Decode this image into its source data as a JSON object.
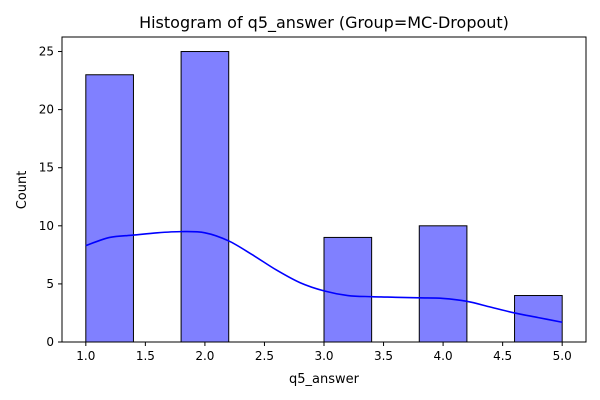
{
  "chart_data": {
    "type": "bar",
    "title": "Histogram of q5_answer (Group=MC-Dropout)",
    "xlabel": "q5_answer",
    "ylabel": "Count",
    "xlim": [
      0.8,
      5.2
    ],
    "ylim": [
      0,
      26.25
    ],
    "x_ticks": [
      "1.0",
      "1.5",
      "2.0",
      "2.5",
      "3.0",
      "3.5",
      "4.0",
      "4.5",
      "5.0"
    ],
    "y_ticks": [
      "0",
      "5",
      "10",
      "15",
      "20",
      "25"
    ],
    "bins": [
      {
        "start": 1.0,
        "end": 1.4,
        "count": 23
      },
      {
        "start": 1.8,
        "end": 2.2,
        "count": 25
      },
      {
        "start": 3.0,
        "end": 3.4,
        "count": 9
      },
      {
        "start": 3.8,
        "end": 4.2,
        "count": 10
      },
      {
        "start": 4.6,
        "end": 5.0,
        "count": 4
      }
    ],
    "kde": {
      "x": [
        1.0,
        1.2,
        1.4,
        1.6,
        1.8,
        2.0,
        2.2,
        2.4,
        2.6,
        2.8,
        3.0,
        3.2,
        3.4,
        3.6,
        3.8,
        4.0,
        4.2,
        4.4,
        4.6,
        4.8,
        5.0
      ],
      "y": [
        8.3,
        9.0,
        9.2,
        9.4,
        9.5,
        9.4,
        8.7,
        7.5,
        6.2,
        5.1,
        4.4,
        4.0,
        3.9,
        3.85,
        3.8,
        3.75,
        3.5,
        3.0,
        2.5,
        2.1,
        1.7
      ]
    },
    "bar_color": "#8080ff",
    "bar_edge_color": "#000000",
    "kde_color": "#0000ff",
    "grid": false,
    "legend": "none"
  }
}
